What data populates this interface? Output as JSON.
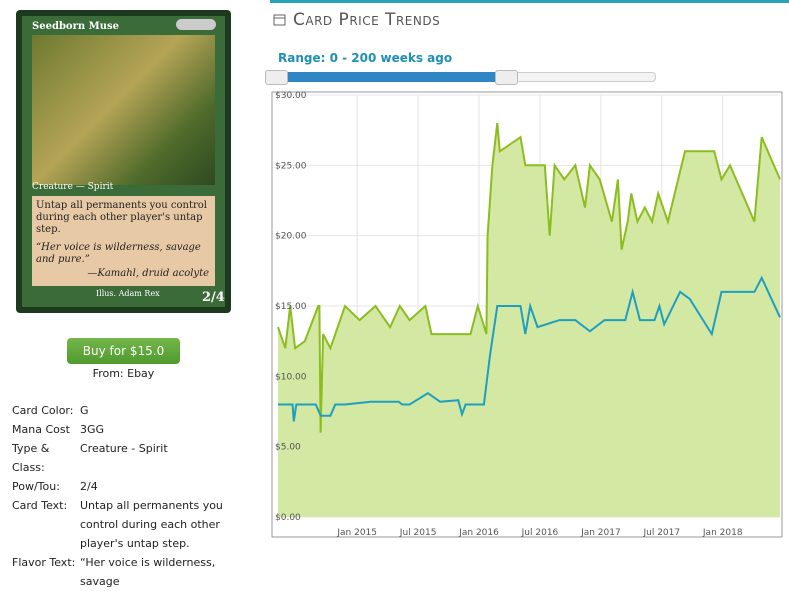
{
  "card": {
    "name": "Seedborn Muse",
    "type_line": "Creature — Spirit",
    "rules_text": "Untap all permanents you control during each other player's untap step.",
    "flavor": "“Her voice is wilderness, savage and pure.”",
    "flavor_source": "—Kamahl, druid acolyte",
    "illustrator": "Illus. Adam Rex",
    "pt": "2/4"
  },
  "buy": {
    "button": "Buy for $15.0",
    "source": "From: Ebay"
  },
  "details": {
    "rows": [
      [
        "Card Color:",
        "G"
      ],
      [
        "Mana Cost",
        "3GG"
      ],
      [
        "Type & Class:",
        "Creature - Spirit"
      ],
      [
        "Pow/Tou:",
        "2/4"
      ],
      [
        "Card Text:",
        "Untap all permanents you control during each other player's untap step."
      ],
      [
        "Flavor Text:",
        "“Her voice is wilderness, savage"
      ]
    ]
  },
  "header": {
    "title": "Card Price Trends",
    "range": "Range: 0 - 200 weeks ago"
  },
  "chart_data": {
    "type": "line",
    "grid": true,
    "xlim": [
      2014.35,
      2018.47
    ],
    "xticks": [
      {
        "value": 2015,
        "label": "Jan 2015"
      },
      {
        "value": 2015.5,
        "label": "Jul 2015"
      },
      {
        "value": 2016,
        "label": "Jan 2016"
      },
      {
        "value": 2016.5,
        "label": "Jul 2016"
      },
      {
        "value": 2017,
        "label": "Jan 2017"
      },
      {
        "value": 2017.5,
        "label": "Jul 2017"
      },
      {
        "value": 2018,
        "label": "Jan 2018"
      }
    ],
    "ylim": [
      0,
      30
    ],
    "yticks": [
      {
        "value": 0,
        "label": "$0.00"
      },
      {
        "value": 5,
        "label": "$5.00"
      },
      {
        "value": 10,
        "label": "$10.00"
      },
      {
        "value": 15,
        "label": "$15.00"
      },
      {
        "value": 20,
        "label": "$20.00"
      },
      {
        "value": 25,
        "label": "$25.00"
      },
      {
        "value": 30,
        "label": "$30.00"
      }
    ],
    "series": [
      {
        "color": "#8cbd1f",
        "fill": "#d3e8a2",
        "x": [
          2014.35,
          2014.41,
          2014.45,
          2014.49,
          2014.57,
          2014.68,
          2014.69,
          2014.7,
          2014.72,
          2014.78,
          2014.9,
          2015.02,
          2015.15,
          2015.27,
          2015.35,
          2015.43,
          2015.56,
          2015.61,
          2015.93,
          2015.99,
          2016.06,
          2016.07,
          2016.11,
          2016.15,
          2016.17,
          2016.34,
          2016.38,
          2016.54,
          2016.58,
          2016.62,
          2016.7,
          2016.79,
          2016.87,
          2016.91,
          2016.99,
          2017.09,
          2017.14,
          2017.17,
          2017.22,
          2017.25,
          2017.3,
          2017.36,
          2017.42,
          2017.47,
          2017.55,
          2017.69,
          2017.93,
          2017.99,
          2018.06,
          2018.26,
          2018.32,
          2018.47
        ],
        "values": [
          13.5,
          12,
          15,
          12,
          12.5,
          15,
          15,
          6,
          13,
          12,
          15,
          14,
          15,
          13.5,
          15,
          14,
          15,
          13,
          13,
          15,
          13,
          20,
          25,
          28,
          26,
          27,
          25,
          25,
          20,
          25,
          24,
          25,
          22,
          25,
          24,
          21,
          24,
          19,
          21,
          23,
          21,
          22,
          21,
          23,
          21,
          26,
          26,
          24,
          25,
          21,
          27,
          24
        ]
      },
      {
        "color": "#1f9fbf",
        "x": [
          2014.35,
          2014.47,
          2014.48,
          2014.5,
          2014.57,
          2014.66,
          2014.7,
          2014.78,
          2014.82,
          2014.9,
          2015.11,
          2015.34,
          2015.37,
          2015.43,
          2015.58,
          2015.68,
          2015.83,
          2015.86,
          2015.89,
          2015.93,
          2016.04,
          2016.09,
          2016.15,
          2016.34,
          2016.38,
          2016.42,
          2016.48,
          2016.66,
          2016.79,
          2016.91,
          2017.03,
          2017.2,
          2017.26,
          2017.32,
          2017.44,
          2017.48,
          2017.52,
          2017.65,
          2017.73,
          2017.91,
          2017.99,
          2018.26,
          2018.32,
          2018.47
        ],
        "values": [
          8,
          8,
          6.8,
          8,
          8,
          8,
          7.2,
          7.2,
          8,
          8,
          8.2,
          8.2,
          8,
          8,
          8.8,
          8.2,
          8.3,
          7.3,
          8,
          8,
          8,
          11.5,
          15,
          15,
          13,
          15,
          13.5,
          14,
          14,
          13.2,
          14,
          14,
          16,
          14,
          14,
          15,
          13.7,
          16,
          15.5,
          13,
          16,
          16,
          17,
          14.2
        ]
      }
    ]
  }
}
